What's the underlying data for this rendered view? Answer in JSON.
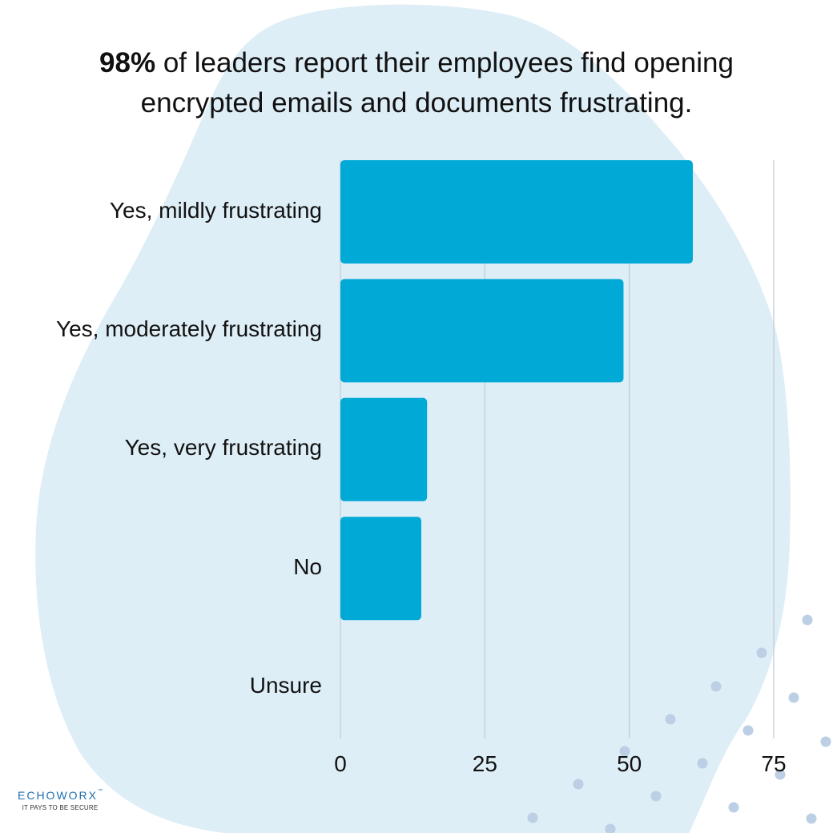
{
  "title": {
    "bold_part": "98%",
    "rest": " of leaders report their employees find opening encrypted emails and documents frustrating."
  },
  "colors": {
    "bar": "#00a9d6",
    "background_blob": "#deeef6",
    "gridline": "#c5ccd1",
    "dots": "#bccfe4",
    "logo": "#1e6fb0"
  },
  "chart_data": {
    "type": "bar",
    "orientation": "horizontal",
    "categories": [
      "Yes, mildly frustrating",
      "Yes, moderately frustrating",
      "Yes, very frustrating",
      "No",
      "Unsure"
    ],
    "values": [
      61,
      49,
      15,
      14,
      0
    ],
    "xlim": [
      0,
      75
    ],
    "xticks": [
      0,
      25,
      50,
      75
    ],
    "xtick_labels": [
      "0",
      "25",
      "50",
      "75"
    ],
    "grid": true,
    "xlabel": "",
    "ylabel": ""
  },
  "logo": {
    "name": "ECHOWORX",
    "trademark": "™",
    "tagline": "IT PAYS TO BE SECURE"
  }
}
